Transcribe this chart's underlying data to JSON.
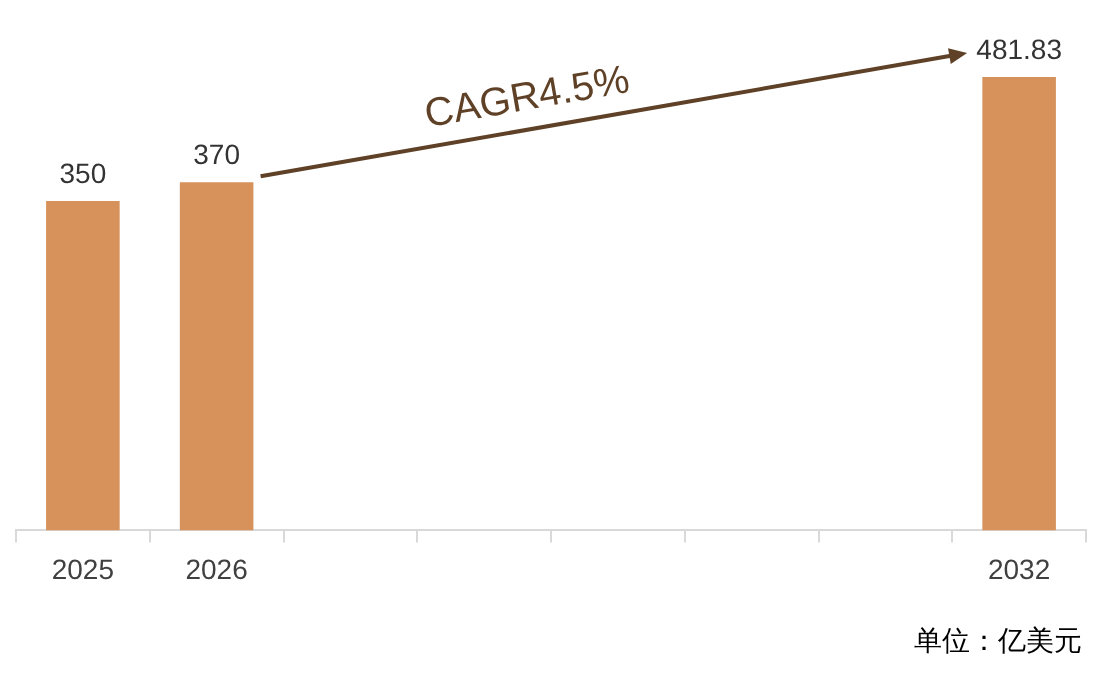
{
  "chart_data": {
    "type": "bar",
    "categories": [
      "2025",
      "2026",
      null,
      null,
      null,
      null,
      null,
      "2032"
    ],
    "values": [
      350,
      370,
      null,
      null,
      null,
      null,
      null,
      481.83
    ],
    "color": "#d6925a",
    "data_labels": true,
    "annotations": [
      "CAGR4.5%",
      "单位：亿美元"
    ]
  }
}
